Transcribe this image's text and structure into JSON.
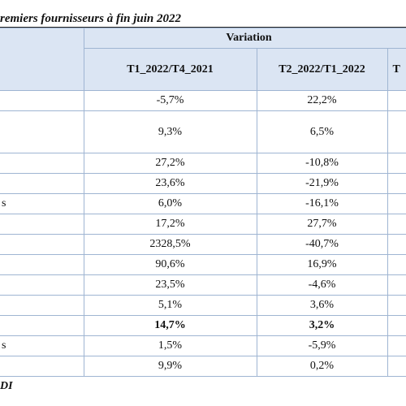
{
  "title": "remiers fournisseurs à fin juin 2022",
  "header": {
    "group_label": "Variation",
    "col1": "T1_2022/T4_2021",
    "col2": "T2_2022/T1_2022",
    "col3": "T"
  },
  "rows": [
    {
      "label": "",
      "v1": "-5,7%",
      "v2": "22,2%"
    },
    {
      "label": "",
      "v1": "9,3%",
      "v2": "6,5%"
    },
    {
      "label": "",
      "v1": "27,2%",
      "v2": "-10,8%"
    },
    {
      "label": "",
      "v1": "23,6%",
      "v2": "-21,9%"
    },
    {
      "label": "s",
      "v1": "6,0%",
      "v2": "-16,1%"
    },
    {
      "label": "",
      "v1": "17,2%",
      "v2": "27,7%"
    },
    {
      "label": "",
      "v1": "2328,5%",
      "v2": "-40,7%"
    },
    {
      "label": "",
      "v1": "90,6%",
      "v2": "16,9%"
    },
    {
      "label": "",
      "v1": "23,5%",
      "v2": "-4,6%"
    },
    {
      "label": "",
      "v1": "5,1%",
      "v2": "3,6%"
    },
    {
      "label": "",
      "v1": "14,7%",
      "v2": "3,2%"
    },
    {
      "label": "s",
      "v1": "1,5%",
      "v2": "-5,9%"
    },
    {
      "label": "",
      "v1": "9,9%",
      "v2": "0,2%"
    }
  ],
  "footnote": "DI"
}
